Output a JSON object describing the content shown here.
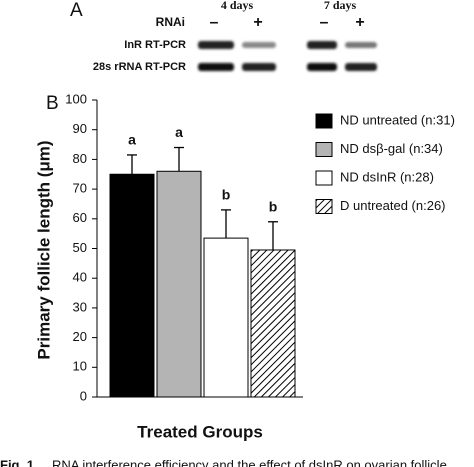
{
  "panel_a": {
    "label": "A",
    "rnai_label": "RNAi",
    "timepoints": [
      "4 days",
      "7 days"
    ],
    "lane_labels": [
      "–",
      "+",
      "–",
      "+"
    ],
    "row_labels": [
      "InR RT-PCR",
      "28s rRNA RT-PCR"
    ]
  },
  "chart_data": {
    "type": "bar",
    "panel_label": "B",
    "y_label": "Primary follicle length (μm)",
    "x_label": "Treated Groups",
    "categories": [
      null
    ],
    "series": [
      {
        "name": "ND untreated (n:31)",
        "color": "#000000",
        "values": [
          75
        ],
        "errors": [
          6.5
        ],
        "annotation": "a"
      },
      {
        "name": "ND dsβ-gal (n:34)",
        "color": "#b4b4b4",
        "values": [
          76
        ],
        "errors": [
          8
        ],
        "annotation": "a"
      },
      {
        "name": "ND dsInR (n:28)",
        "color": "#ffffff",
        "values": [
          53.5
        ],
        "errors": [
          9.5
        ],
        "annotation": "b"
      },
      {
        "name": "D untreated (n:26)",
        "color": "#ffffff",
        "hatch": true,
        "values": [
          49.5
        ],
        "errors": [
          9.5
        ],
        "annotation": "b"
      }
    ],
    "ylim": [
      0,
      100
    ],
    "yticks": [
      0,
      10,
      20,
      30,
      40,
      50,
      60,
      70,
      80,
      90,
      100
    ]
  },
  "caption": {
    "label": "Fig. 1",
    "text": "RNA interference efficiency and the effect of dsInR on ovarian follicle"
  }
}
